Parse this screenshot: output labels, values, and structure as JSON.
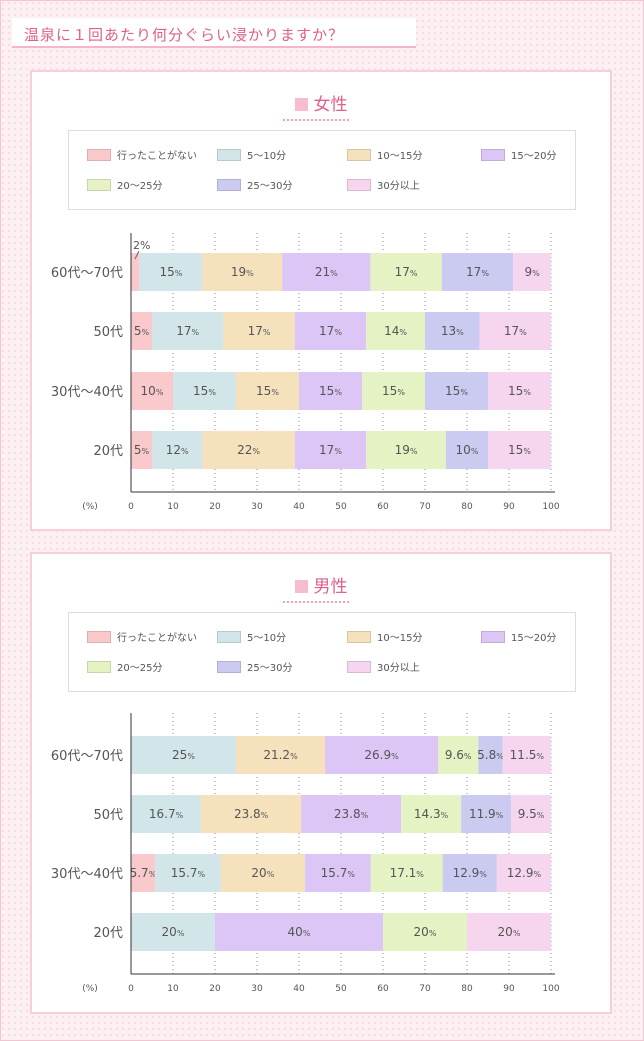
{
  "page": {
    "title": "温泉に１回あたり何分ぐらい浸かりますか？"
  },
  "legend": {
    "colors": [
      "#f9c9cc",
      "#d2e5e8",
      "#f5e2bc",
      "#dcc6f6",
      "#e4f2c4",
      "#cbcaf1",
      "#f6d5ee"
    ],
    "labels": [
      "行ったことがない",
      "5〜10分",
      "10〜15分",
      "15〜20分",
      "20〜25分",
      "25〜30分",
      "30分以上"
    ]
  },
  "chart_data": [
    {
      "type": "bar",
      "orientation": "horizontal-stacked",
      "title": "女性",
      "categories": [
        "60代〜70代",
        "50代",
        "30代〜40代",
        "20代"
      ],
      "series": [
        {
          "name": "行ったことがない",
          "values": [
            2,
            5,
            10,
            5
          ],
          "labels": [
            "2%",
            "5%",
            "10%",
            "5%"
          ]
        },
        {
          "name": "5〜10分",
          "values": [
            15,
            17,
            15,
            12
          ],
          "labels": [
            "15%",
            "17%",
            "15%",
            "12%"
          ]
        },
        {
          "name": "10〜15分",
          "values": [
            19,
            17,
            15,
            22
          ],
          "labels": [
            "19%",
            "17%",
            "15%",
            "22%"
          ]
        },
        {
          "name": "15〜20分",
          "values": [
            21,
            17,
            15,
            17
          ],
          "labels": [
            "21%",
            "17%",
            "15%",
            "17%"
          ]
        },
        {
          "name": "20〜25分",
          "values": [
            17,
            14,
            15,
            19
          ],
          "labels": [
            "17%",
            "14%",
            "15%",
            "19%"
          ]
        },
        {
          "name": "25〜30分",
          "values": [
            17,
            13,
            15,
            10
          ],
          "labels": [
            "17%",
            "13%",
            "15%",
            "10%"
          ]
        },
        {
          "name": "30分以上",
          "values": [
            9,
            17,
            15,
            15
          ],
          "labels": [
            "9%",
            "17%",
            "15%",
            "15%"
          ]
        }
      ],
      "xlabel": "(%)",
      "xlim": [
        0,
        100
      ],
      "xticks": [
        "0",
        "10",
        "20",
        "30",
        "40",
        "50",
        "60",
        "70",
        "80",
        "90",
        "100"
      ],
      "grid": true,
      "legend_position": "top"
    },
    {
      "type": "bar",
      "orientation": "horizontal-stacked",
      "title": "男性",
      "categories": [
        "60代〜70代",
        "50代",
        "30代〜40代",
        "20代"
      ],
      "series": [
        {
          "name": "行ったことがない",
          "values": [
            0,
            0,
            5.7,
            0
          ],
          "labels": [
            "",
            "",
            "5.7%",
            ""
          ]
        },
        {
          "name": "5〜10分",
          "values": [
            25,
            16.7,
            15.7,
            20
          ],
          "labels": [
            "25%",
            "16.7%",
            "15.7%",
            "20%"
          ]
        },
        {
          "name": "10〜15分",
          "values": [
            21.2,
            23.8,
            20,
            0
          ],
          "labels": [
            "21.2%",
            "23.8%",
            "20%",
            ""
          ]
        },
        {
          "name": "15〜20分",
          "values": [
            26.9,
            23.8,
            15.7,
            40
          ],
          "labels": [
            "26.9%",
            "23.8%",
            "15.7%",
            "40%"
          ]
        },
        {
          "name": "20〜25分",
          "values": [
            9.6,
            14.3,
            17.1,
            20
          ],
          "labels": [
            "9.6%",
            "14.3%",
            "17.1%",
            "20%"
          ]
        },
        {
          "name": "25〜30分",
          "values": [
            5.8,
            11.9,
            12.9,
            0
          ],
          "labels": [
            "5.8%",
            "11.9%",
            "12.9%",
            ""
          ]
        },
        {
          "name": "30分以上",
          "values": [
            11.5,
            9.5,
            12.9,
            20
          ],
          "labels": [
            "11.5%",
            "9.5%",
            "12.9%",
            "20%"
          ]
        }
      ],
      "xlabel": "(%)",
      "xlim": [
        0,
        100
      ],
      "xticks": [
        "0",
        "10",
        "20",
        "30",
        "40",
        "50",
        "60",
        "70",
        "80",
        "90",
        "100"
      ],
      "grid": true,
      "legend_position": "top"
    }
  ]
}
